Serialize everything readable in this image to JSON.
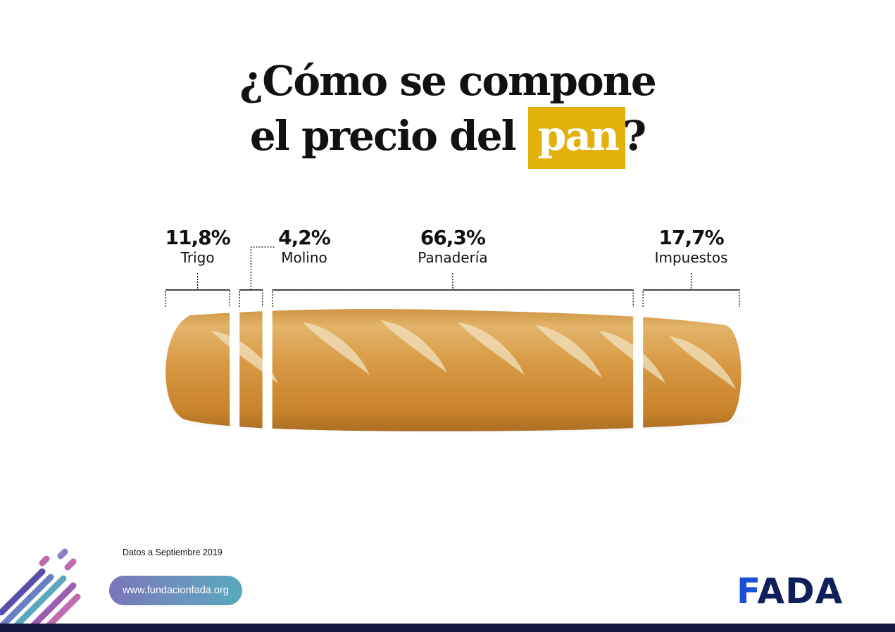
{
  "title": {
    "line1": "¿Cómo se compone",
    "line2_prefix": "el precio del",
    "highlight": "pan",
    "suffix": "?"
  },
  "chart_data": {
    "type": "bar",
    "categories": [
      "Trigo",
      "Molino",
      "Panadería",
      "Impuestos"
    ],
    "values": [
      11.8,
      4.2,
      66.3,
      17.7
    ],
    "value_labels": [
      "11,8%",
      "4,2%",
      "66,3%",
      "17,7%"
    ],
    "title": "¿Cómo se compone el precio del pan?",
    "unit": "%",
    "orientation": "horizontal-stacked"
  },
  "note": "Datos a Septiembre 2019",
  "url": "www.fundacionfada.org",
  "logo": {
    "first": "F",
    "rest": "ADA"
  },
  "colors": {
    "highlight": "#e3b10b",
    "bread": "#d59a45",
    "navy": "#12183f",
    "logo_blue": "#1a4fd8"
  }
}
